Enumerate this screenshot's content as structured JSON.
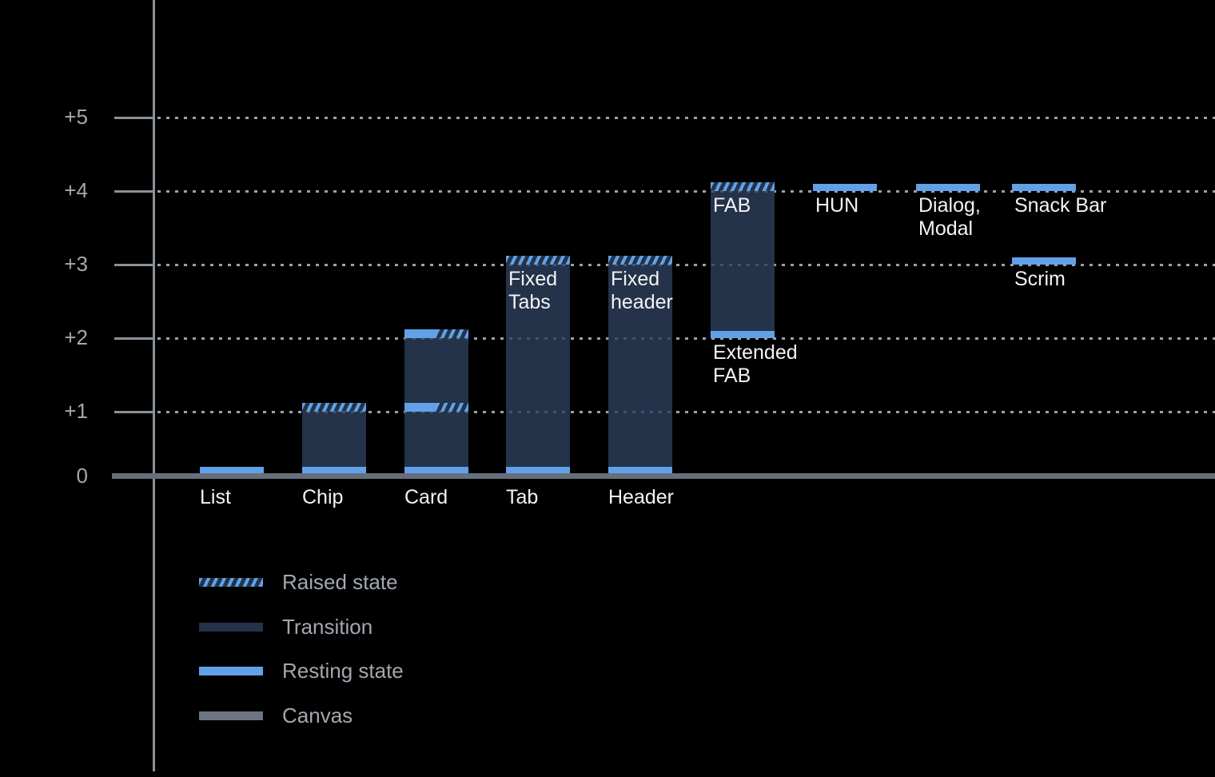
{
  "chart_data": {
    "type": "bar",
    "title": "",
    "xlabel": "",
    "ylabel": "",
    "ylim": [
      0,
      5.5
    ],
    "grid": "dotted-horizontal",
    "yticks": [
      {
        "label": "+5",
        "value": 5
      },
      {
        "label": "+4",
        "value": 4
      },
      {
        "label": "+3",
        "value": 3
      },
      {
        "label": "+2",
        "value": 2
      },
      {
        "label": "+1",
        "value": 1
      },
      {
        "label": "0",
        "value": 0
      }
    ],
    "bars": [
      {
        "name": "List",
        "slot": 0,
        "segments": [
          {
            "type": "resting",
            "from": 0,
            "to": 0.1
          }
        ],
        "labels": [
          {
            "text": "List",
            "placement": "axis"
          }
        ]
      },
      {
        "name": "Chip",
        "slot": 1,
        "segments": [
          {
            "type": "resting",
            "from": 0,
            "to": 0.1
          },
          {
            "type": "transition",
            "from": 0.1,
            "to": 1.0
          },
          {
            "type": "raised",
            "from": 1.0,
            "to": 1.12
          }
        ],
        "labels": [
          {
            "text": "Chip",
            "placement": "axis"
          }
        ]
      },
      {
        "name": "Card",
        "slot": 2,
        "segments": [
          {
            "type": "resting",
            "from": 0,
            "to": 0.1
          },
          {
            "type": "transition",
            "from": 0.1,
            "to": 1.0
          },
          {
            "type": "split",
            "from": 1.0,
            "to": 1.12
          },
          {
            "type": "transition",
            "from": 1.12,
            "to": 2.0
          },
          {
            "type": "split",
            "from": 2.0,
            "to": 2.12
          }
        ],
        "labels": [
          {
            "text": "Card",
            "placement": "axis"
          }
        ]
      },
      {
        "name": "Tab",
        "slot": 3,
        "segments": [
          {
            "type": "resting",
            "from": 0,
            "to": 0.1
          },
          {
            "type": "transition",
            "from": 0.1,
            "to": 3.0
          },
          {
            "type": "raised",
            "from": 3.0,
            "to": 3.12
          }
        ],
        "labels": [
          {
            "text": "Tab",
            "placement": "axis"
          },
          {
            "text": "Fixed\nTabs",
            "placement": "inside",
            "at": 3.0
          }
        ]
      },
      {
        "name": "Header",
        "slot": 4,
        "segments": [
          {
            "type": "resting",
            "from": 0,
            "to": 0.1
          },
          {
            "type": "transition",
            "from": 0.1,
            "to": 3.0
          },
          {
            "type": "raised",
            "from": 3.0,
            "to": 3.12
          }
        ],
        "labels": [
          {
            "text": "Header",
            "placement": "axis"
          },
          {
            "text": "Fixed\nheader",
            "placement": "inside",
            "at": 3.0
          }
        ]
      },
      {
        "name": "FAB",
        "slot": 5,
        "segments": [
          {
            "type": "resting",
            "from": 2.0,
            "to": 2.1
          },
          {
            "type": "transition",
            "from": 2.1,
            "to": 4.0
          },
          {
            "type": "raised",
            "from": 4.0,
            "to": 4.12
          }
        ],
        "labels": [
          {
            "text": "FAB",
            "placement": "inside",
            "at": 4.0
          },
          {
            "text": "Extended\nFAB",
            "placement": "below",
            "at": 2.0
          }
        ]
      },
      {
        "name": "HUN",
        "slot": 6,
        "segments": [
          {
            "type": "resting",
            "from": 4.0,
            "to": 4.1
          }
        ],
        "labels": [
          {
            "text": "HUN",
            "placement": "below",
            "at": 4.0
          }
        ]
      },
      {
        "name": "Dialog, Modal",
        "slot": 7,
        "segments": [
          {
            "type": "resting",
            "from": 4.0,
            "to": 4.1
          }
        ],
        "labels": [
          {
            "text": "Dialog,\nModal",
            "placement": "below",
            "at": 4.0
          }
        ]
      },
      {
        "name": "Snack Bar",
        "slot": 8,
        "segments": [
          {
            "type": "resting",
            "from": 4.0,
            "to": 4.1
          }
        ],
        "labels": [
          {
            "text": "Snack Bar",
            "placement": "below",
            "at": 4.0
          }
        ]
      },
      {
        "name": "Scrim",
        "slot": 8,
        "segments": [
          {
            "type": "resting",
            "from": 3.0,
            "to": 3.1
          }
        ],
        "labels": [
          {
            "text": "Scrim",
            "placement": "below",
            "at": 3.0
          }
        ]
      }
    ],
    "legend": [
      {
        "swatch": "raised",
        "label": "Raised state"
      },
      {
        "swatch": "transition",
        "label": "Transition"
      },
      {
        "swatch": "resting",
        "label": "Resting state"
      },
      {
        "swatch": "canvas",
        "label": "Canvas"
      }
    ],
    "legend_position": "bottom-left"
  },
  "colors": {
    "background": "#000000",
    "resting": "#61A1E8",
    "transition_solid": "#243349",
    "transition_rgba": "rgba(45,64,91,0.8)",
    "canvas": "#666F7B",
    "grid": "#9BA1A9",
    "axis": "#8B9199",
    "tick_label_text": "#A2A8AF",
    "bar_label_text": "#F2F3F4",
    "legend_text": "#A2A8AF"
  }
}
